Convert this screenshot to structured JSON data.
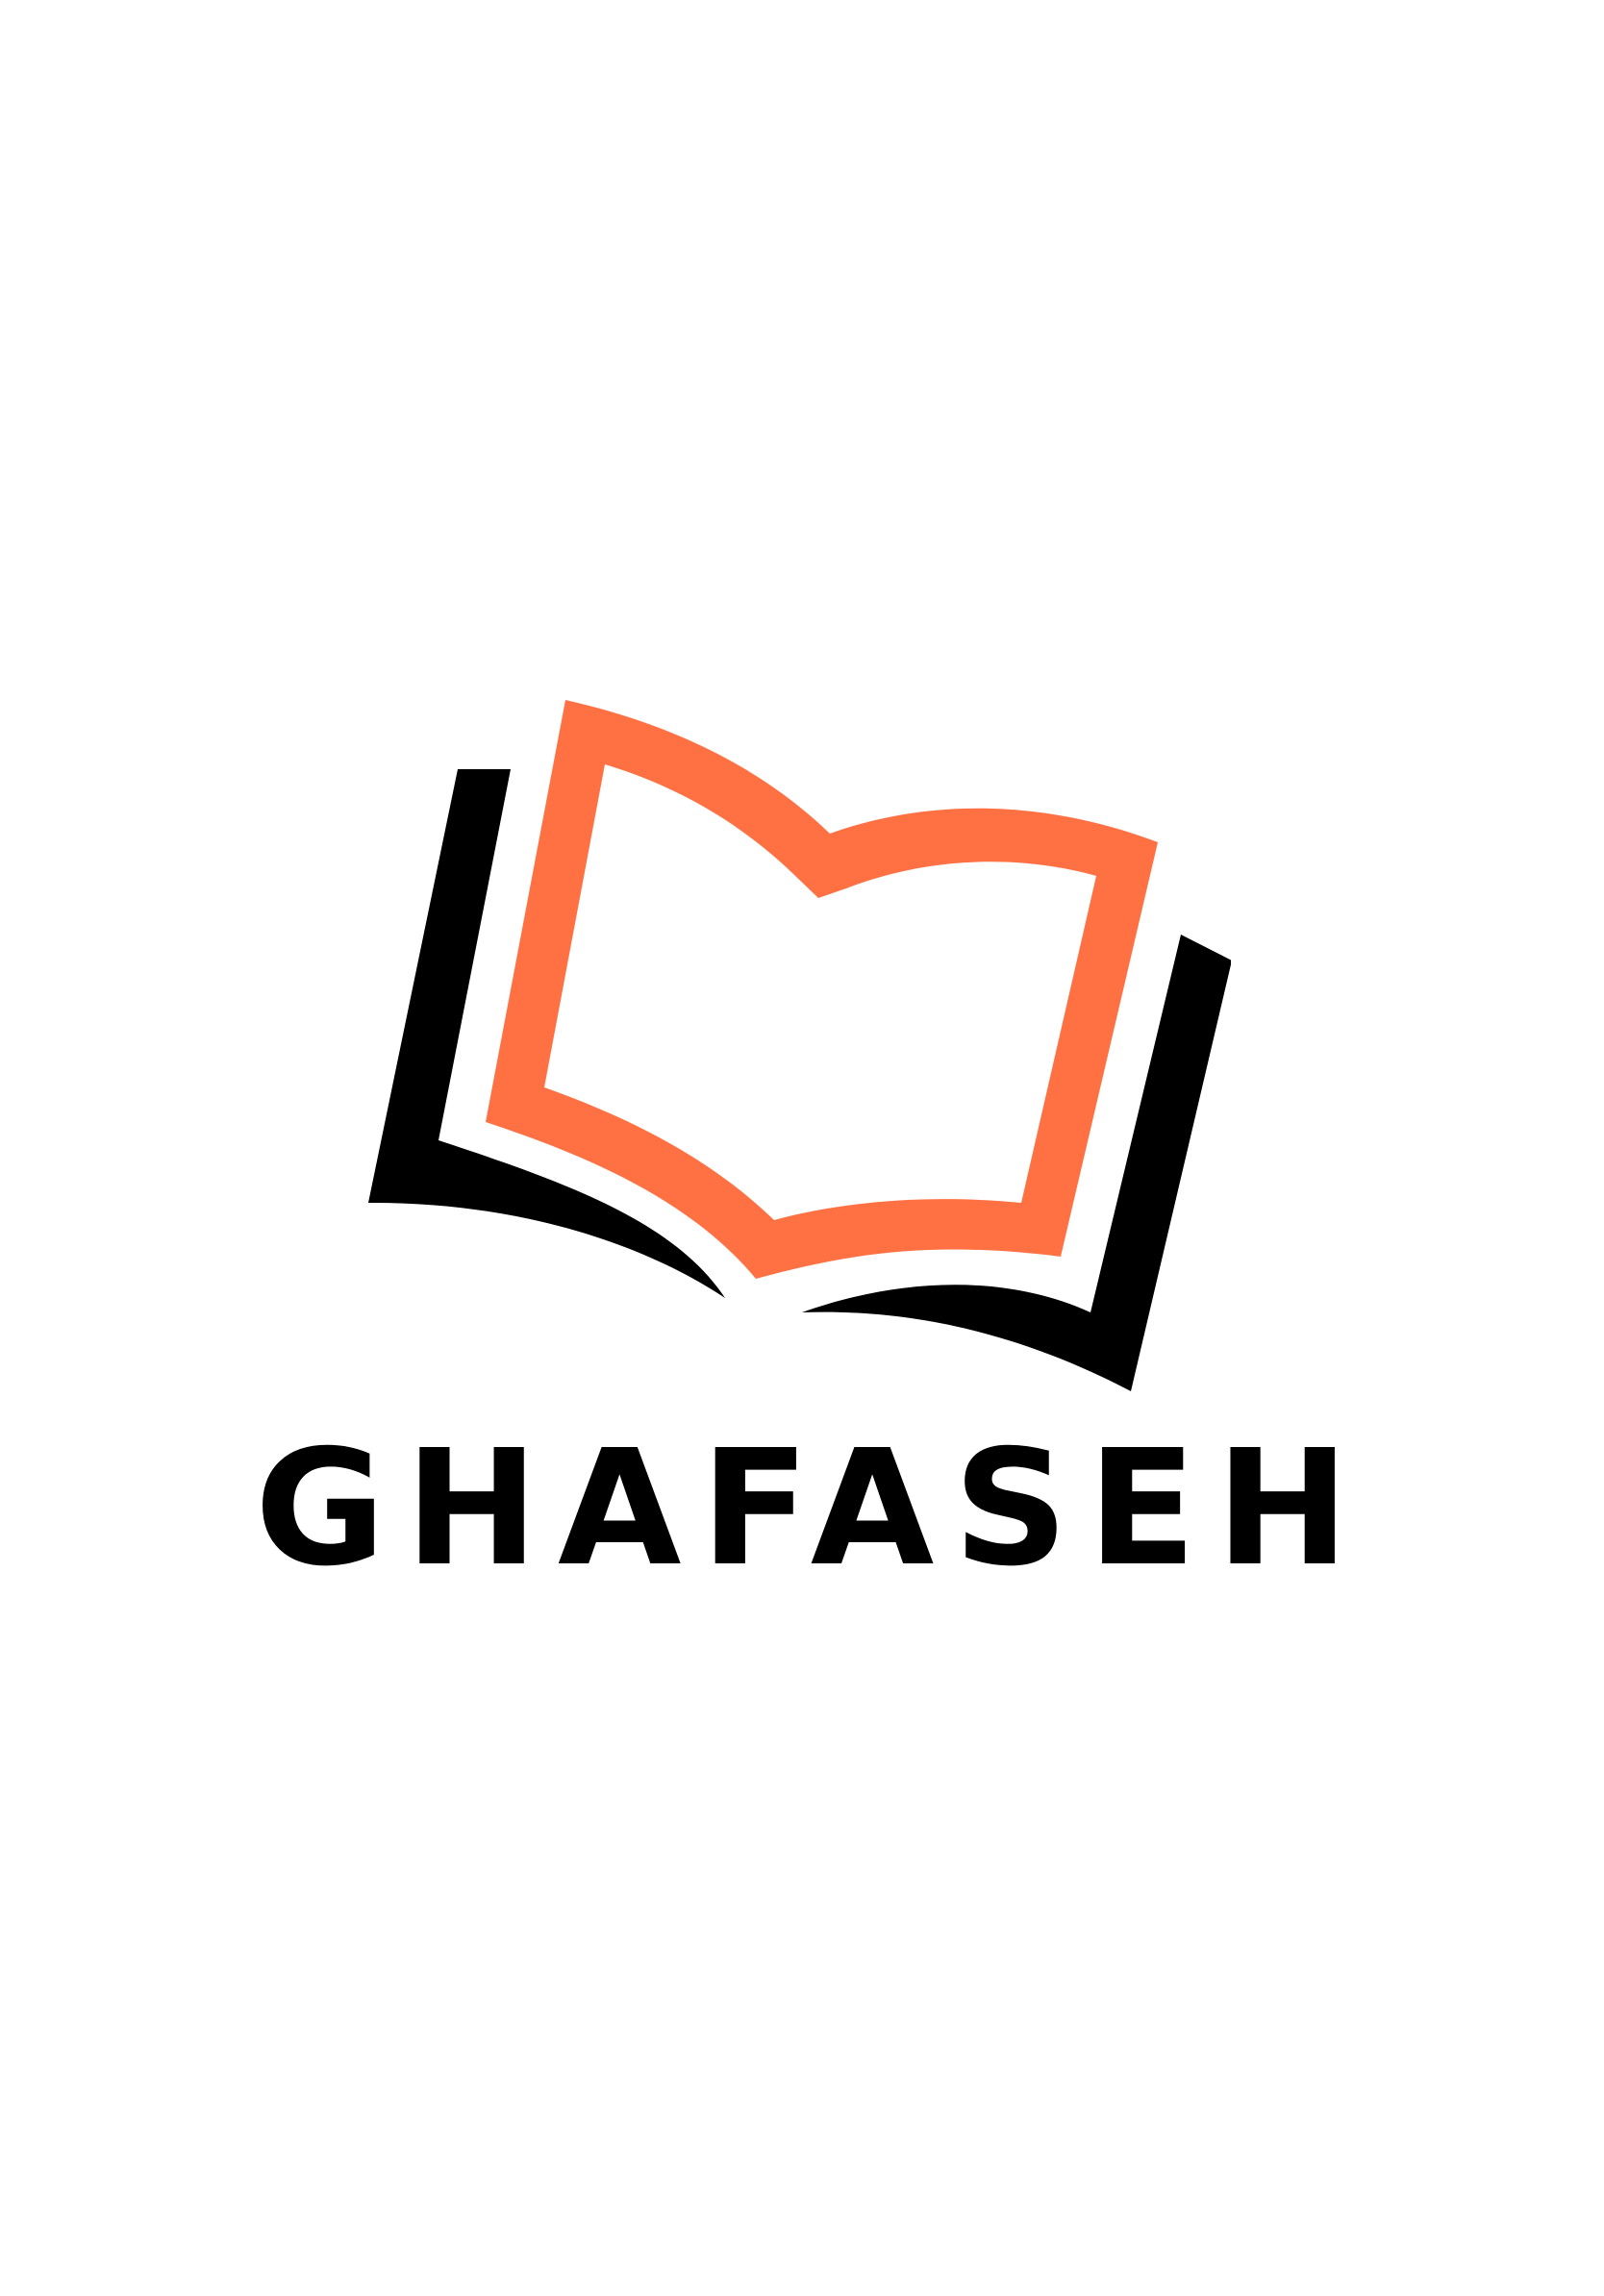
{
  "splash": {
    "brand_name": "GHAFASEH",
    "logo_icon": "open-book-icon",
    "colors": {
      "background": "#ffffff",
      "accent": "#ff7143",
      "ink": "#000000"
    }
  }
}
